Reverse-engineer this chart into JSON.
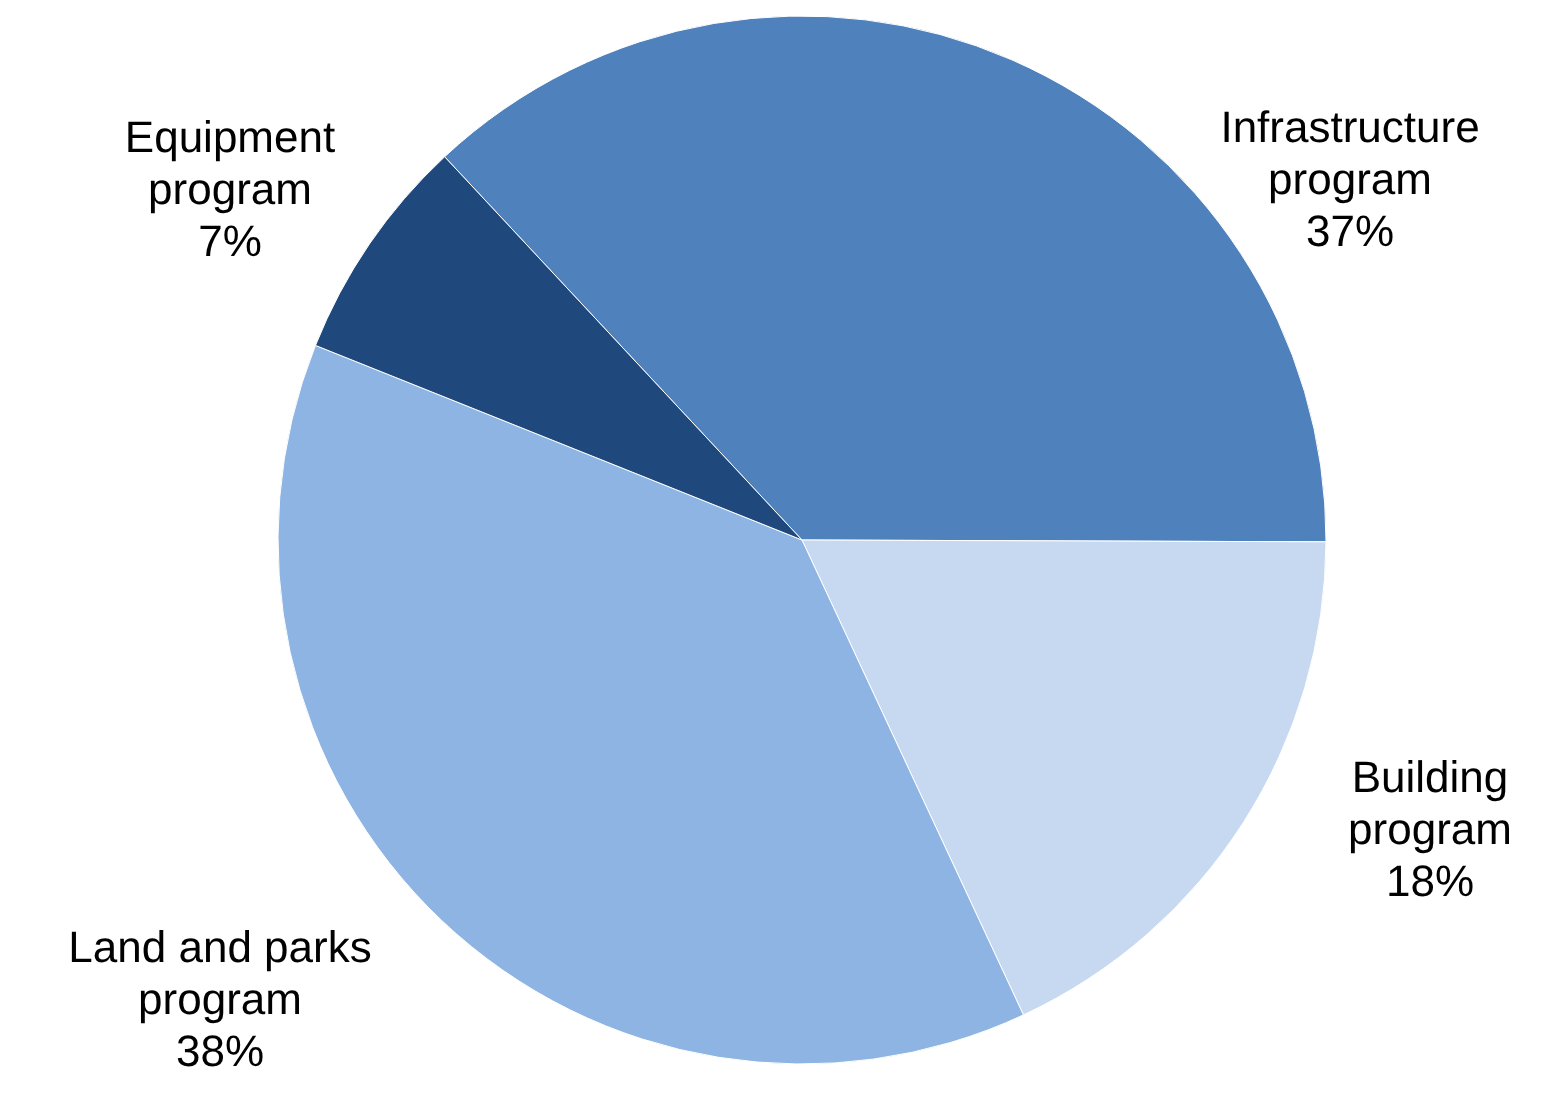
{
  "chart_data": {
    "type": "pie",
    "categories": [
      "Infrastructure program",
      "Building program",
      "Land and parks program",
      "Equipment program"
    ],
    "values": [
      37,
      18,
      38,
      7
    ],
    "colors": [
      "#4f81bd",
      "#c6d9f1",
      "#8eb4e3",
      "#1f497d"
    ],
    "value_labels": [
      "37%",
      "18%",
      "38%",
      "7%"
    ]
  }
}
